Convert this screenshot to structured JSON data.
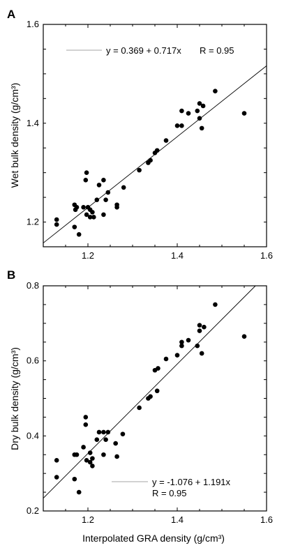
{
  "chart_data": [
    {
      "type": "scatter",
      "panel_label": "A",
      "ylabel": "Wet bulk density (g/cm³)",
      "xlabel": "",
      "xlim": [
        1.1,
        1.6
      ],
      "ylim": [
        1.15,
        1.6
      ],
      "xticks": [
        "1.2",
        "1.4",
        "1.6"
      ],
      "yticks": [
        "1.2",
        "1.4",
        "1.6"
      ],
      "fit": {
        "intercept": 0.369,
        "slope": 0.717
      },
      "equation": "y = 0.369 + 0.717x",
      "r_text": "R = 0.95",
      "points": [
        [
          1.13,
          1.205
        ],
        [
          1.13,
          1.195
        ],
        [
          1.17,
          1.235
        ],
        [
          1.17,
          1.19
        ],
        [
          1.172,
          1.225
        ],
        [
          1.175,
          1.23
        ],
        [
          1.18,
          1.175
        ],
        [
          1.19,
          1.23
        ],
        [
          1.195,
          1.285
        ],
        [
          1.197,
          1.3
        ],
        [
          1.197,
          1.215
        ],
        [
          1.2,
          1.23
        ],
        [
          1.205,
          1.21
        ],
        [
          1.205,
          1.225
        ],
        [
          1.21,
          1.22
        ],
        [
          1.213,
          1.21
        ],
        [
          1.22,
          1.245
        ],
        [
          1.225,
          1.275
        ],
        [
          1.235,
          1.285
        ],
        [
          1.235,
          1.215
        ],
        [
          1.24,
          1.245
        ],
        [
          1.245,
          1.26
        ],
        [
          1.265,
          1.23
        ],
        [
          1.265,
          1.235
        ],
        [
          1.28,
          1.27
        ],
        [
          1.315,
          1.305
        ],
        [
          1.335,
          1.32
        ],
        [
          1.34,
          1.325
        ],
        [
          1.35,
          1.34
        ],
        [
          1.355,
          1.345
        ],
        [
          1.375,
          1.365
        ],
        [
          1.4,
          1.395
        ],
        [
          1.41,
          1.395
        ],
        [
          1.41,
          1.425
        ],
        [
          1.425,
          1.42
        ],
        [
          1.445,
          1.425
        ],
        [
          1.45,
          1.44
        ],
        [
          1.45,
          1.41
        ],
        [
          1.455,
          1.39
        ],
        [
          1.458,
          1.435
        ],
        [
          1.485,
          1.465
        ],
        [
          1.55,
          1.42
        ]
      ]
    },
    {
      "type": "scatter",
      "panel_label": "B",
      "ylabel": "Dry bulk density (g/cm³)",
      "xlabel": "Interpolated GRA density (g/cm³)",
      "xlim": [
        1.1,
        1.6
      ],
      "ylim": [
        0.2,
        0.8
      ],
      "xticks": [
        "1.2",
        "1.4",
        "1.6"
      ],
      "yticks": [
        "0.2",
        "0.4",
        "0.6",
        "0.8"
      ],
      "fit": {
        "intercept": -1.076,
        "slope": 1.191
      },
      "equation": "y = -1.076 + 1.191x",
      "r_text": "R = 0.95",
      "points": [
        [
          1.13,
          0.335
        ],
        [
          1.13,
          0.29
        ],
        [
          1.17,
          0.35
        ],
        [
          1.17,
          0.285
        ],
        [
          1.175,
          0.35
        ],
        [
          1.18,
          0.25
        ],
        [
          1.19,
          0.37
        ],
        [
          1.195,
          0.43
        ],
        [
          1.195,
          0.45
        ],
        [
          1.197,
          0.335
        ],
        [
          1.205,
          0.355
        ],
        [
          1.205,
          0.33
        ],
        [
          1.21,
          0.32
        ],
        [
          1.21,
          0.34
        ],
        [
          1.22,
          0.39
        ],
        [
          1.225,
          0.41
        ],
        [
          1.235,
          0.35
        ],
        [
          1.235,
          0.41
        ],
        [
          1.24,
          0.39
        ],
        [
          1.245,
          0.41
        ],
        [
          1.262,
          0.38
        ],
        [
          1.265,
          0.345
        ],
        [
          1.278,
          0.405
        ],
        [
          1.315,
          0.475
        ],
        [
          1.335,
          0.5
        ],
        [
          1.34,
          0.505
        ],
        [
          1.35,
          0.575
        ],
        [
          1.355,
          0.52
        ],
        [
          1.357,
          0.58
        ],
        [
          1.375,
          0.605
        ],
        [
          1.4,
          0.615
        ],
        [
          1.41,
          0.64
        ],
        [
          1.41,
          0.65
        ],
        [
          1.425,
          0.655
        ],
        [
          1.445,
          0.64
        ],
        [
          1.45,
          0.68
        ],
        [
          1.45,
          0.695
        ],
        [
          1.455,
          0.62
        ],
        [
          1.46,
          0.69
        ],
        [
          1.485,
          0.75
        ],
        [
          1.55,
          0.665
        ]
      ]
    }
  ]
}
